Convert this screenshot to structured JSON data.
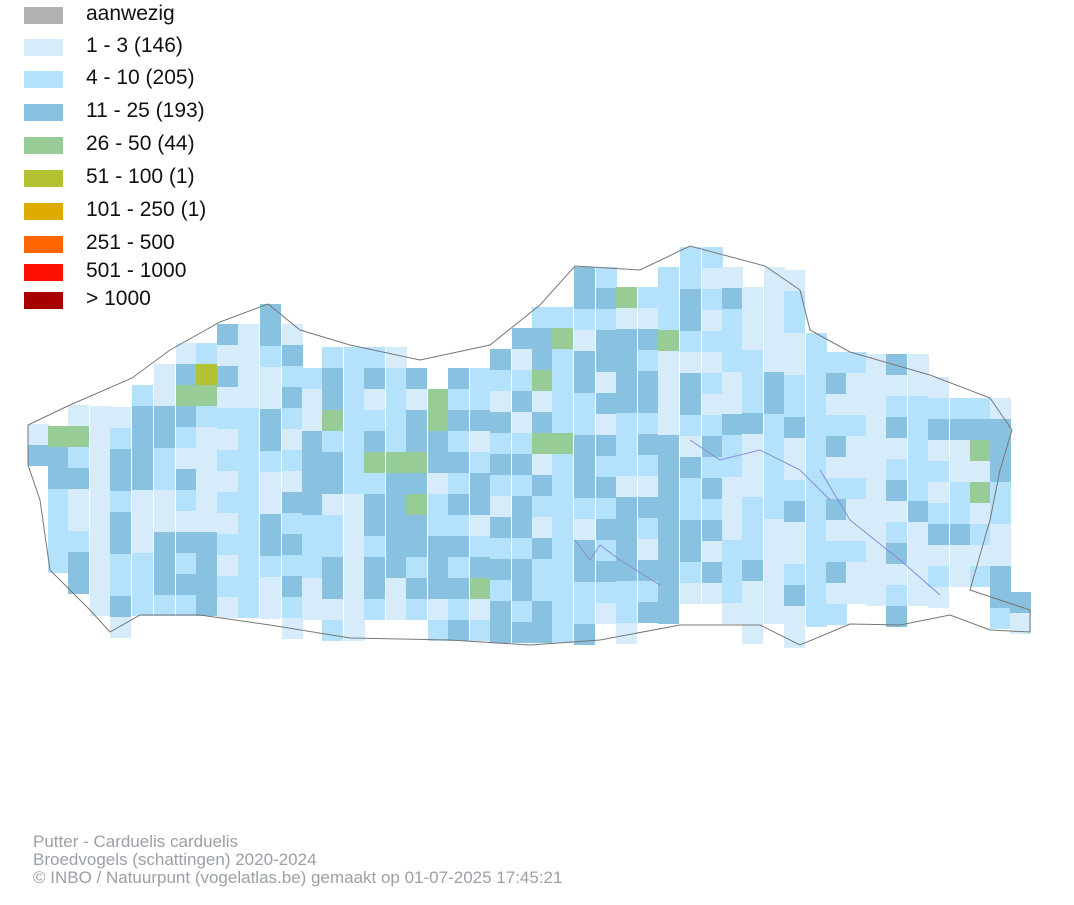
{
  "legend": [
    {
      "label": "aanwezig",
      "color": "#b2b2b2"
    },
    {
      "label": "1 - 3 (146)",
      "color": "#d7ecfb"
    },
    {
      "label": "4 - 10 (205)",
      "color": "#b4e1fb"
    },
    {
      "label": "11 - 25 (193)",
      "color": "#89c2e0"
    },
    {
      "label": "26 - 50 (44)",
      "color": "#98cc96"
    },
    {
      "label": "51 - 100 (1)",
      "color": "#b3c132"
    },
    {
      "label": "101 - 250 (1)",
      "color": "#e0ab00"
    },
    {
      "label": "251 - 500",
      "color": "#ff6600"
    },
    {
      "label": "501 - 1000",
      "color": "#ff1100"
    },
    {
      "label": "> 1000",
      "color": "#a80000"
    }
  ],
  "footer": {
    "species": "Putter - Carduelis carduelis",
    "dataset": "Broedvogels (schattingen) 2020-2024",
    "credit": "© INBO / Natuurpunt (vogelatlas.be) gemaakt op 01-07-2025 17:45:21"
  },
  "colors": {
    "border": "#777777",
    "river": "#8a8ad8",
    "footer_text": "#9aa0a6"
  }
}
